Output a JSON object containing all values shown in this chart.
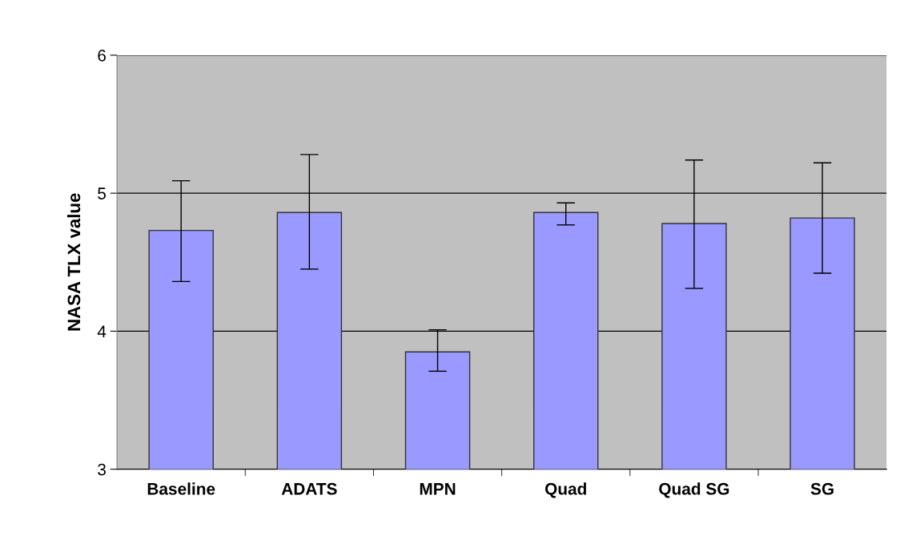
{
  "chart_data": {
    "type": "bar",
    "ylabel": "NASA TLX value",
    "categories": [
      "Baseline",
      "ADATS",
      "MPN",
      "Quad",
      "Quad SG",
      "SG"
    ],
    "values": [
      4.73,
      4.86,
      3.85,
      4.86,
      4.78,
      4.82
    ],
    "errors": [
      [
        4.36,
        5.09
      ],
      [
        4.45,
        5.28
      ],
      [
        3.71,
        4.01
      ],
      [
        4.77,
        4.93
      ],
      [
        4.31,
        5.24
      ],
      [
        4.42,
        5.22
      ]
    ],
    "color": "#9999ff",
    "ylim": [
      3,
      6
    ],
    "yticks": [
      3,
      4,
      5,
      6
    ],
    "grid": "y"
  }
}
